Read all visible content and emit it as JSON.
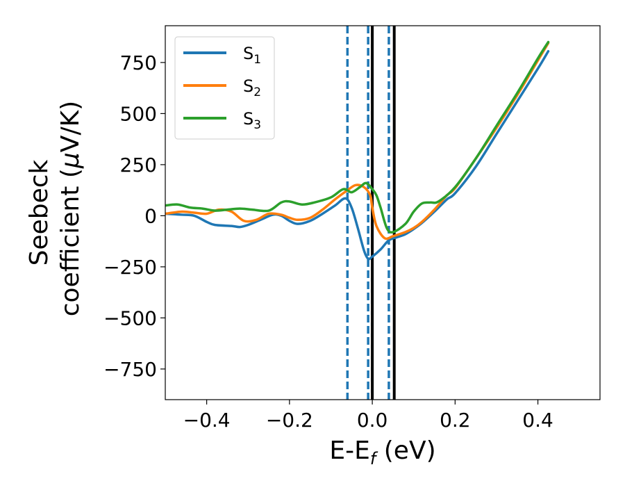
{
  "chart_data": {
    "type": "line",
    "xlabel": {
      "main": "E-E",
      "sub": "f",
      "tail": " (eV)"
    },
    "ylabel": {
      "line1": "Seebeck",
      "line2_main": "coefficient  (",
      "line2_mu": "μ",
      "line2_tail": "V/K)"
    },
    "xlim": [
      -0.5,
      0.55
    ],
    "ylim": [
      -900,
      930
    ],
    "xticks": [
      -0.4,
      -0.2,
      0.0,
      0.2,
      0.4
    ],
    "xtick_labels": [
      "−0.4",
      "−0.2",
      "0.0",
      "0.2",
      "0.4"
    ],
    "yticks": [
      -750,
      -500,
      -250,
      0,
      250,
      500,
      750
    ],
    "ytick_labels": [
      "−750",
      "−500",
      "−250",
      "0",
      "250",
      "500",
      "750"
    ],
    "legend_position": "upper-left",
    "series": [
      {
        "name": "S",
        "name_sub": "1",
        "color": "#1f77b4",
        "x": [
          -0.5,
          -0.46,
          -0.43,
          -0.4,
          -0.38,
          -0.34,
          -0.32,
          -0.3,
          -0.27,
          -0.24,
          -0.22,
          -0.2,
          -0.18,
          -0.15,
          -0.12,
          -0.09,
          -0.065,
          -0.05,
          -0.035,
          -0.02,
          -0.01,
          0.0,
          0.02,
          0.04,
          0.06,
          0.08,
          0.1,
          0.12,
          0.15,
          0.18,
          0.2,
          0.25,
          0.3,
          0.35,
          0.4,
          0.425
        ],
        "y": [
          10,
          5,
          0,
          -30,
          -45,
          -50,
          -55,
          -45,
          -20,
          5,
          0,
          -25,
          -40,
          -25,
          10,
          50,
          85,
          40,
          -60,
          -170,
          -210,
          -200,
          -165,
          -120,
          -105,
          -90,
          -65,
          -35,
          20,
          80,
          110,
          240,
          400,
          560,
          720,
          805
        ]
      },
      {
        "name": "S",
        "name_sub": "2",
        "color": "#ff7f0e",
        "x": [
          -0.5,
          -0.46,
          -0.43,
          -0.4,
          -0.37,
          -0.34,
          -0.31,
          -0.28,
          -0.25,
          -0.22,
          -0.2,
          -0.18,
          -0.15,
          -0.12,
          -0.09,
          -0.06,
          -0.04,
          -0.02,
          -0.005,
          0.0,
          0.01,
          0.03,
          0.05,
          0.08,
          0.1,
          0.12,
          0.15,
          0.18,
          0.2,
          0.25,
          0.3,
          0.35,
          0.4,
          0.425
        ],
        "y": [
          10,
          20,
          15,
          10,
          30,
          20,
          -25,
          -20,
          10,
          5,
          -10,
          -20,
          -10,
          30,
          80,
          125,
          150,
          140,
          100,
          40,
          -50,
          -110,
          -100,
          -80,
          -60,
          -30,
          30,
          100,
          135,
          280,
          430,
          590,
          760,
          845
        ]
      },
      {
        "name": "S",
        "name_sub": "3",
        "color": "#2ca02c",
        "x": [
          -0.5,
          -0.47,
          -0.44,
          -0.41,
          -0.38,
          -0.35,
          -0.32,
          -0.29,
          -0.25,
          -0.22,
          -0.2,
          -0.17,
          -0.14,
          -0.1,
          -0.07,
          -0.05,
          -0.03,
          -0.015,
          0.0,
          0.01,
          0.02,
          0.035,
          0.05,
          0.08,
          0.1,
          0.12,
          0.14,
          0.16,
          0.2,
          0.25,
          0.3,
          0.35,
          0.4,
          0.425
        ],
        "y": [
          50,
          55,
          40,
          35,
          25,
          30,
          35,
          30,
          25,
          65,
          70,
          55,
          65,
          90,
          130,
          115,
          140,
          160,
          130,
          100,
          40,
          -60,
          -80,
          -40,
          20,
          60,
          65,
          70,
          140,
          280,
          440,
          600,
          770,
          850
        ]
      }
    ],
    "vlines": [
      {
        "x": -0.06,
        "style": "dashed",
        "color": "#1f77b4"
      },
      {
        "x": -0.01,
        "style": "dashed",
        "color": "#1f77b4"
      },
      {
        "x": 0.0,
        "style": "solid",
        "color": "#000000"
      },
      {
        "x": 0.04,
        "style": "dashed",
        "color": "#1f77b4"
      },
      {
        "x": 0.053,
        "style": "solid",
        "color": "#000000"
      }
    ]
  }
}
